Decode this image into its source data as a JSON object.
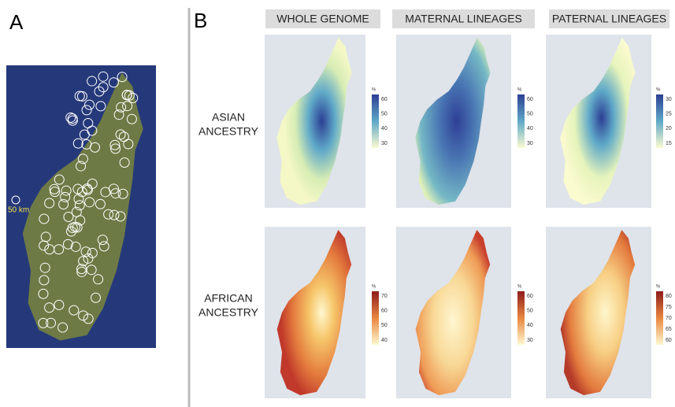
{
  "panel_a": {
    "label": "A",
    "scale": "50 km"
  },
  "panel_b": {
    "label": "B",
    "columns": [
      "WHOLE GENOME",
      "MATERNAL LINEAGES",
      "PATERNAL LINEAGES"
    ],
    "rows": [
      {
        "label": [
          "ASIAN",
          "ANCESTRY"
        ],
        "maps": [
          {
            "unit": "%",
            "ticks": [
              60,
              50,
              40,
              30
            ]
          },
          {
            "unit": "%",
            "ticks": [
              60,
              50,
              40,
              30
            ]
          },
          {
            "unit": "%",
            "ticks": [
              30,
              25,
              20,
              15
            ]
          }
        ]
      },
      {
        "label": [
          "AFRICAN",
          "ANCESTRY"
        ],
        "maps": [
          {
            "unit": "%",
            "ticks": [
              70,
              60,
              50,
              40
            ]
          },
          {
            "unit": "%",
            "ticks": [
              60,
              50,
              40,
              30
            ]
          },
          {
            "unit": "%",
            "ticks": [
              80,
              75,
              70,
              65,
              60
            ]
          }
        ]
      }
    ]
  }
}
